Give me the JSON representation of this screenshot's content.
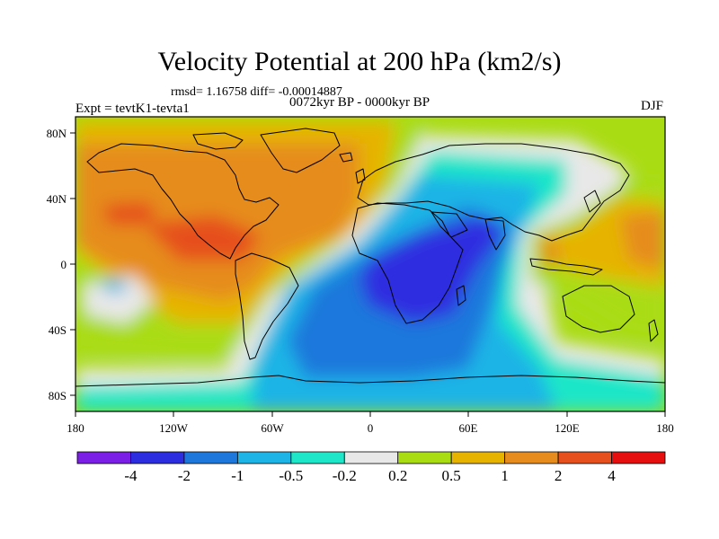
{
  "header": {
    "title": "Velocity Potential at 200 hPa (km2/s)",
    "stats": "rmsd= 1.16758 diff= -0.00014887",
    "period": "0072kyr BP - 0000kyr BP",
    "experiment": "Expt = tevtK1-tevta1",
    "season": "DJF"
  },
  "axes": {
    "lat_labels": [
      "80N",
      "40N",
      "0",
      "40S",
      "80S"
    ],
    "lon_labels": [
      "180",
      "120W",
      "60W",
      "0",
      "60E",
      "120E",
      "180"
    ]
  },
  "colorbar": {
    "bins": [
      {
        "color": "#7b1ee6"
      },
      {
        "color": "#2d2de0"
      },
      {
        "color": "#1e78dc"
      },
      {
        "color": "#1eb4e6"
      },
      {
        "color": "#1ee6c8"
      },
      {
        "color": "#e8e8e8"
      },
      {
        "color": "#aadc14"
      },
      {
        "color": "#e6b400"
      },
      {
        "color": "#e68c1e"
      },
      {
        "color": "#e6501e"
      },
      {
        "color": "#e60f0f"
      }
    ],
    "labels": [
      "-4",
      "-2",
      "-1",
      "-0.5",
      "-0.2",
      "0.2",
      "0.5",
      "1",
      "2",
      "4"
    ]
  },
  "colors": {
    "orange": "#e68c1e",
    "dark_orange": "#e6501e",
    "amber": "#e6b400",
    "yellow_green": "#aadc14",
    "light_gray": "#e8e8e8",
    "aquamarine": "#1ee6c8",
    "cyan": "#1eb4e6",
    "blue": "#1e78dc",
    "dark_blue": "#2d2de0"
  }
}
